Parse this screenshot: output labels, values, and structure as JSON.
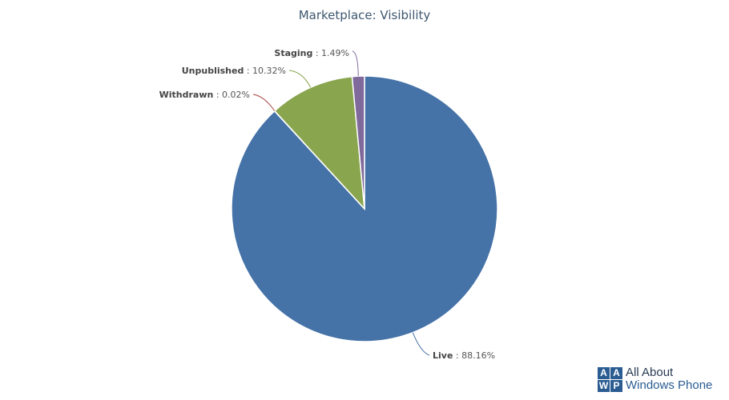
{
  "chart_data": {
    "type": "pie",
    "title": "Marketplace: Visibility",
    "slices": [
      {
        "name": "Live",
        "value": 88.16,
        "label": "88.16%",
        "color": "#4572a7"
      },
      {
        "name": "Withdrawn",
        "value": 0.02,
        "label": "0.02%",
        "color": "#aa4643"
      },
      {
        "name": "Unpublished",
        "value": 10.32,
        "label": "10.32%",
        "color": "#89a54e"
      },
      {
        "name": "Staging",
        "value": 1.49,
        "label": "1.49%",
        "color": "#80699b"
      }
    ]
  },
  "logo": {
    "boxes": [
      "A",
      "A",
      "W",
      "P"
    ],
    "line1": "All About",
    "line2": "Windows Phone"
  }
}
